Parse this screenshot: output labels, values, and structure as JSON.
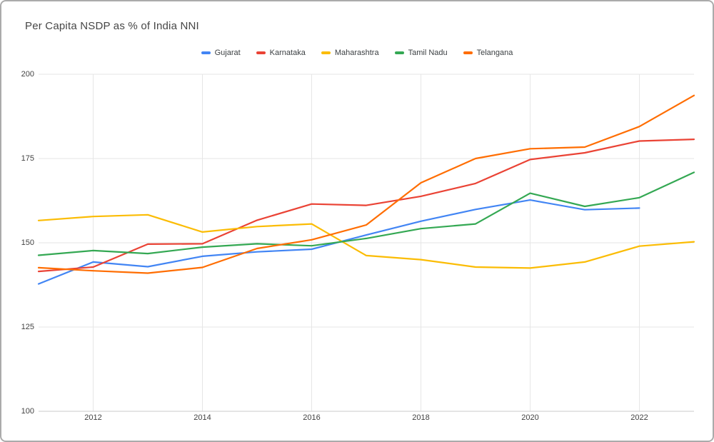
{
  "title": "Per Capita NSDP as % of India NNI",
  "chart_data": {
    "type": "line",
    "x": [
      2011,
      2012,
      2013,
      2014,
      2015,
      2016,
      2017,
      2018,
      2019,
      2020,
      2021,
      2022,
      2023
    ],
    "series": [
      {
        "name": "Gujarat",
        "color": "#4285F4",
        "values": [
          137.8,
          144.3,
          142.9,
          146.0,
          147.3,
          148.1,
          152.3,
          156.4,
          159.9,
          162.7,
          159.8,
          160.3,
          null
        ]
      },
      {
        "name": "Karnataka",
        "color": "#EA4335",
        "values": [
          141.5,
          142.8,
          149.6,
          149.7,
          156.7,
          161.5,
          161.1,
          163.8,
          167.6,
          174.7,
          176.7,
          180.2,
          180.7
        ]
      },
      {
        "name": "Maharashtra",
        "color": "#FBBC04",
        "values": [
          156.6,
          157.8,
          158.3,
          153.2,
          154.8,
          155.6,
          146.2,
          145.0,
          142.8,
          142.5,
          144.3,
          149.0,
          150.3
        ]
      },
      {
        "name": "Tamil Nadu",
        "color": "#34A853",
        "values": [
          146.3,
          147.7,
          146.8,
          148.7,
          149.7,
          149.1,
          151.3,
          154.2,
          155.6,
          164.7,
          160.8,
          163.4,
          170.9
        ]
      },
      {
        "name": "Telangana",
        "color": "#FF6D01",
        "values": [
          142.6,
          141.7,
          141.0,
          142.7,
          148.3,
          150.9,
          155.3,
          167.8,
          175.0,
          177.9,
          178.4,
          184.5,
          193.7
        ]
      }
    ],
    "ylim": [
      100,
      200
    ],
    "y_ticks": [
      200,
      175,
      150,
      125,
      100
    ],
    "x_ticks": [
      2012,
      2014,
      2016,
      2018,
      2020,
      2022
    ],
    "legend_position": "top",
    "grid": true,
    "title": "Per Capita NSDP as % of India NNI",
    "xlabel": "",
    "ylabel": ""
  },
  "style": {
    "gridline_color": "#e6e6e6",
    "baseline_color": "#c9c9c9",
    "title_color": "#464646",
    "tick_label_color": "#424242"
  }
}
